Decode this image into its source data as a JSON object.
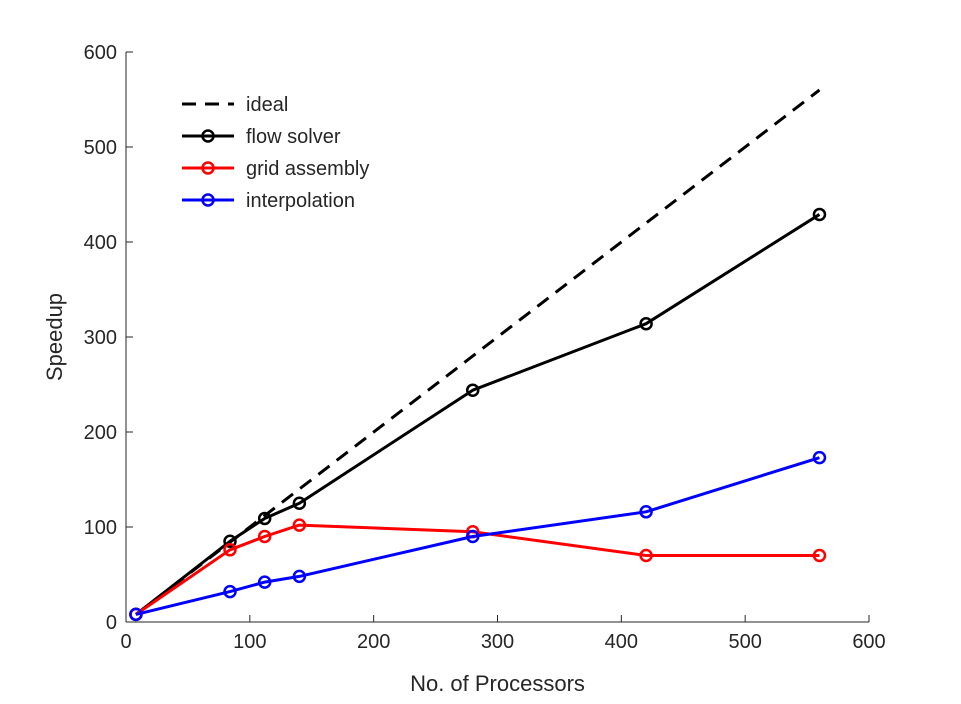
{
  "chart_data": {
    "type": "line",
    "title": "",
    "xlabel": "No. of Processors",
    "ylabel": "Speedup",
    "xlim": [
      0,
      600
    ],
    "ylim": [
      0,
      600
    ],
    "xticks": [
      0,
      100,
      200,
      300,
      400,
      500,
      600
    ],
    "yticks": [
      0,
      100,
      200,
      300,
      400,
      500,
      600
    ],
    "grid": false,
    "legend_position": "top-left",
    "series": [
      {
        "name": "ideal",
        "color": "#000000",
        "style": "dashed",
        "marker": "none",
        "x": [
          8,
          560
        ],
        "y": [
          8,
          560
        ]
      },
      {
        "name": "flow solver",
        "color": "#000000",
        "style": "solid",
        "marker": "circle",
        "x": [
          8,
          84,
          112,
          140,
          280,
          420,
          560
        ],
        "y": [
          8,
          85,
          109,
          125,
          244,
          314,
          429
        ]
      },
      {
        "name": "grid assembly",
        "color": "#ff0000",
        "style": "solid",
        "marker": "circle",
        "x": [
          8,
          84,
          112,
          140,
          280,
          420,
          560
        ],
        "y": [
          8,
          76,
          90,
          102,
          95,
          70,
          70
        ]
      },
      {
        "name": "interpolation",
        "color": "#0000ff",
        "style": "solid",
        "marker": "circle",
        "x": [
          8,
          84,
          112,
          140,
          280,
          420,
          560
        ],
        "y": [
          8,
          32,
          42,
          48,
          90,
          116,
          173
        ]
      }
    ]
  }
}
